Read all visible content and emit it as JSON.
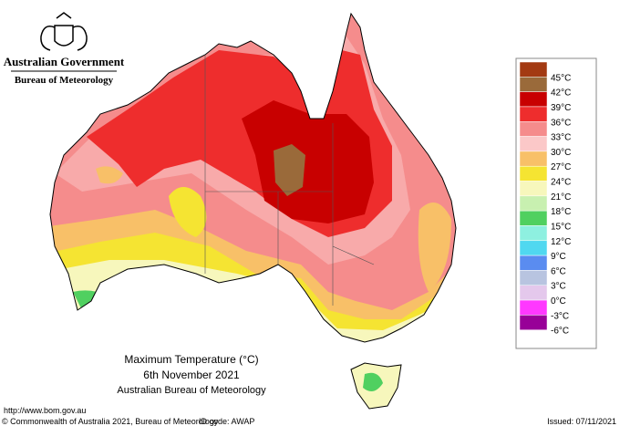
{
  "header": {
    "government": "Australian Government",
    "bureau": "Bureau of Meteorology"
  },
  "map": {
    "title": "Maximum Temperature (°C)",
    "date": "6th November 2021",
    "source": "Australian Bureau of Meteorology"
  },
  "legend": {
    "labels": [
      "45°C",
      "42°C",
      "39°C",
      "36°C",
      "33°C",
      "30°C",
      "27°C",
      "24°C",
      "21°C",
      "18°C",
      "15°C",
      "12°C",
      "9°C",
      "6°C",
      "3°C",
      "0°C",
      "-3°C",
      "-6°C"
    ],
    "colors": [
      "#a33a12",
      "#9a6a3a",
      "#c80000",
      "#ee2d2d",
      "#f58c8c",
      "#fbc8c8",
      "#f8c068",
      "#f5e432",
      "#f7f7bc",
      "#c8f0b0",
      "#50d060",
      "#8ef0e0",
      "#50d8f0",
      "#5a8cf0",
      "#b8c4e0",
      "#e4c8ec",
      "#ff38ff",
      "#980098"
    ]
  },
  "footer": {
    "url": "http://www.bom.gov.au",
    "copyright": "© Commonwealth of Australia 2021, Bureau of Meteorology",
    "id_code": "ID code: AWAP",
    "issued": "Issued: 07/11/2021"
  }
}
